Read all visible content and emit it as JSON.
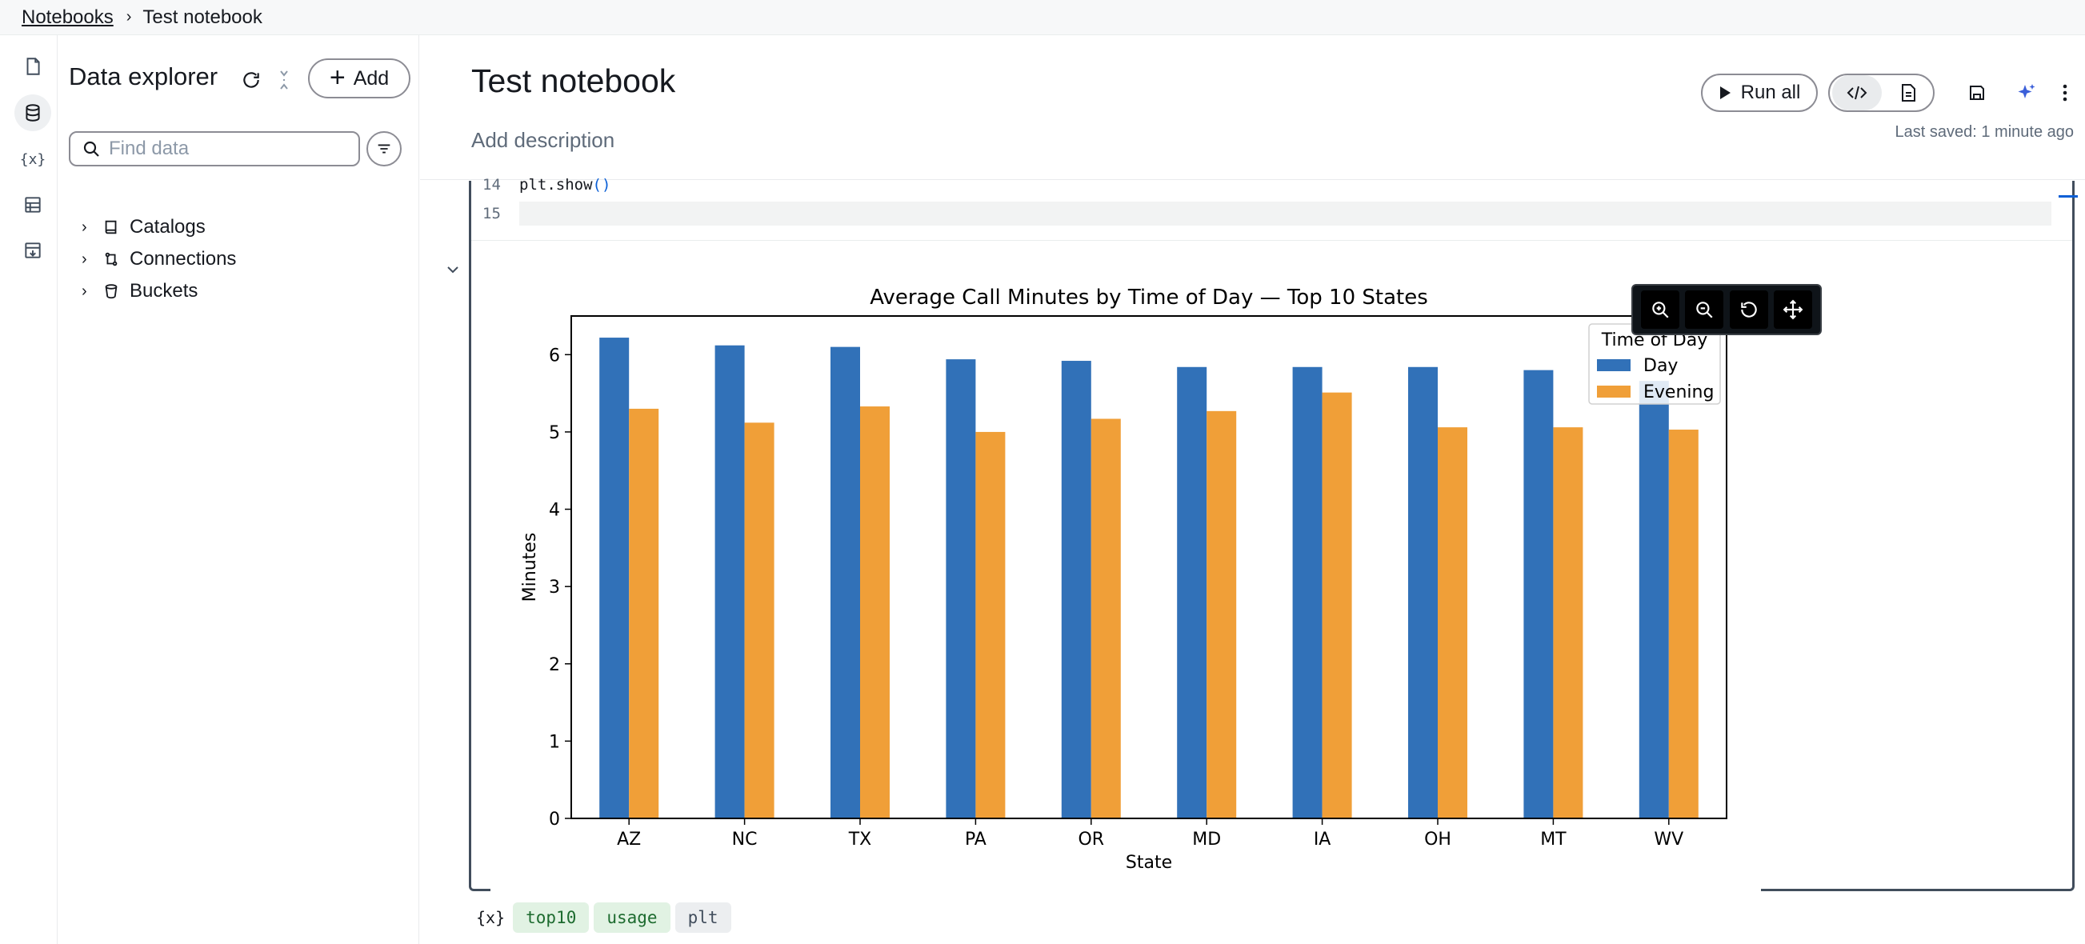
{
  "breadcrumb": {
    "root": "Notebooks",
    "current": "Test notebook"
  },
  "rail": {
    "vars_label": "{x}"
  },
  "explorer": {
    "title": "Data explorer",
    "add_label": "Add",
    "search_placeholder": "Find data",
    "tree": [
      {
        "label": "Catalogs",
        "icon": "book-icon"
      },
      {
        "label": "Connections",
        "icon": "connections-icon"
      },
      {
        "label": "Buckets",
        "icon": "bucket-icon"
      }
    ]
  },
  "notebook": {
    "title": "Test notebook",
    "description_placeholder": "Add description",
    "run_all_label": "Run all",
    "last_saved": "Last saved: 1 minute ago"
  },
  "code": {
    "lines": [
      {
        "number": "14",
        "text": "plt.show",
        "suffix": "()"
      },
      {
        "number": "15",
        "text": "",
        "suffix": ""
      }
    ]
  },
  "variables": {
    "label": "{x}",
    "chips": [
      "top10",
      "usage",
      "plt"
    ]
  },
  "colors": {
    "day": "#3171b8",
    "evening": "#f09f38",
    "accent": "#0a5fd6"
  },
  "chart_data": {
    "type": "bar",
    "title": "Average Call Minutes by Time of Day — Top 10 States",
    "xlabel": "State",
    "ylabel": "Minutes",
    "categories": [
      "AZ",
      "NC",
      "TX",
      "PA",
      "OR",
      "MD",
      "IA",
      "OH",
      "MT",
      "WV"
    ],
    "series": [
      {
        "name": "Day",
        "values": [
          6.22,
          6.12,
          6.1,
          5.94,
          5.92,
          5.84,
          5.84,
          5.84,
          5.8,
          5.66
        ]
      },
      {
        "name": "Evening",
        "values": [
          5.3,
          5.12,
          5.33,
          5.0,
          5.17,
          5.27,
          5.51,
          5.06,
          5.06,
          5.03
        ]
      }
    ],
    "ylim": [
      0,
      6.5
    ],
    "yticks": [
      "0",
      "1",
      "2",
      "3",
      "4",
      "5",
      "6"
    ],
    "legend": {
      "title": "Time of Day",
      "placement": "top-right"
    },
    "grid": false
  }
}
